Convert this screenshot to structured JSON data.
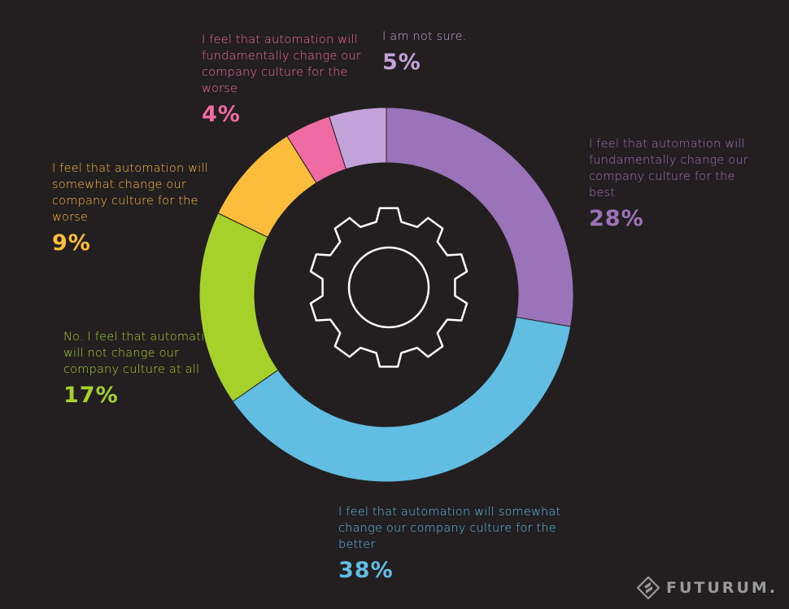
{
  "chart_data": {
    "type": "pie",
    "title": "",
    "center_icon": "gear-icon",
    "slices": [
      {
        "label": "I feel that automation will fundamentally change our company culture for the best",
        "value": 28,
        "display": "28%",
        "color": "#9b73b8"
      },
      {
        "label": "I feel that automation will somewhat change our company culture for the better",
        "value": 38,
        "display": "38%",
        "color": "#62bde3"
      },
      {
        "label": "No. I feel that automation will  not change our company culture at all",
        "value": 17,
        "display": "17%",
        "color": "#a5d12a"
      },
      {
        "label": "I feel that automation will  somewhat change our company culture for the worse",
        "value": 9,
        "display": "9%",
        "color": "#fbbd3b"
      },
      {
        "label": "I feel that automation will fundamentally change our company culture for the worse",
        "value": 4,
        "display": "4%",
        "color": "#f06aa4"
      },
      {
        "label": "I am not sure.",
        "value": 5,
        "display": "5%",
        "color": "#c3a2d9"
      }
    ]
  },
  "brand": {
    "name": "FUTURUM.",
    "logo": "futurum-logo-icon"
  }
}
